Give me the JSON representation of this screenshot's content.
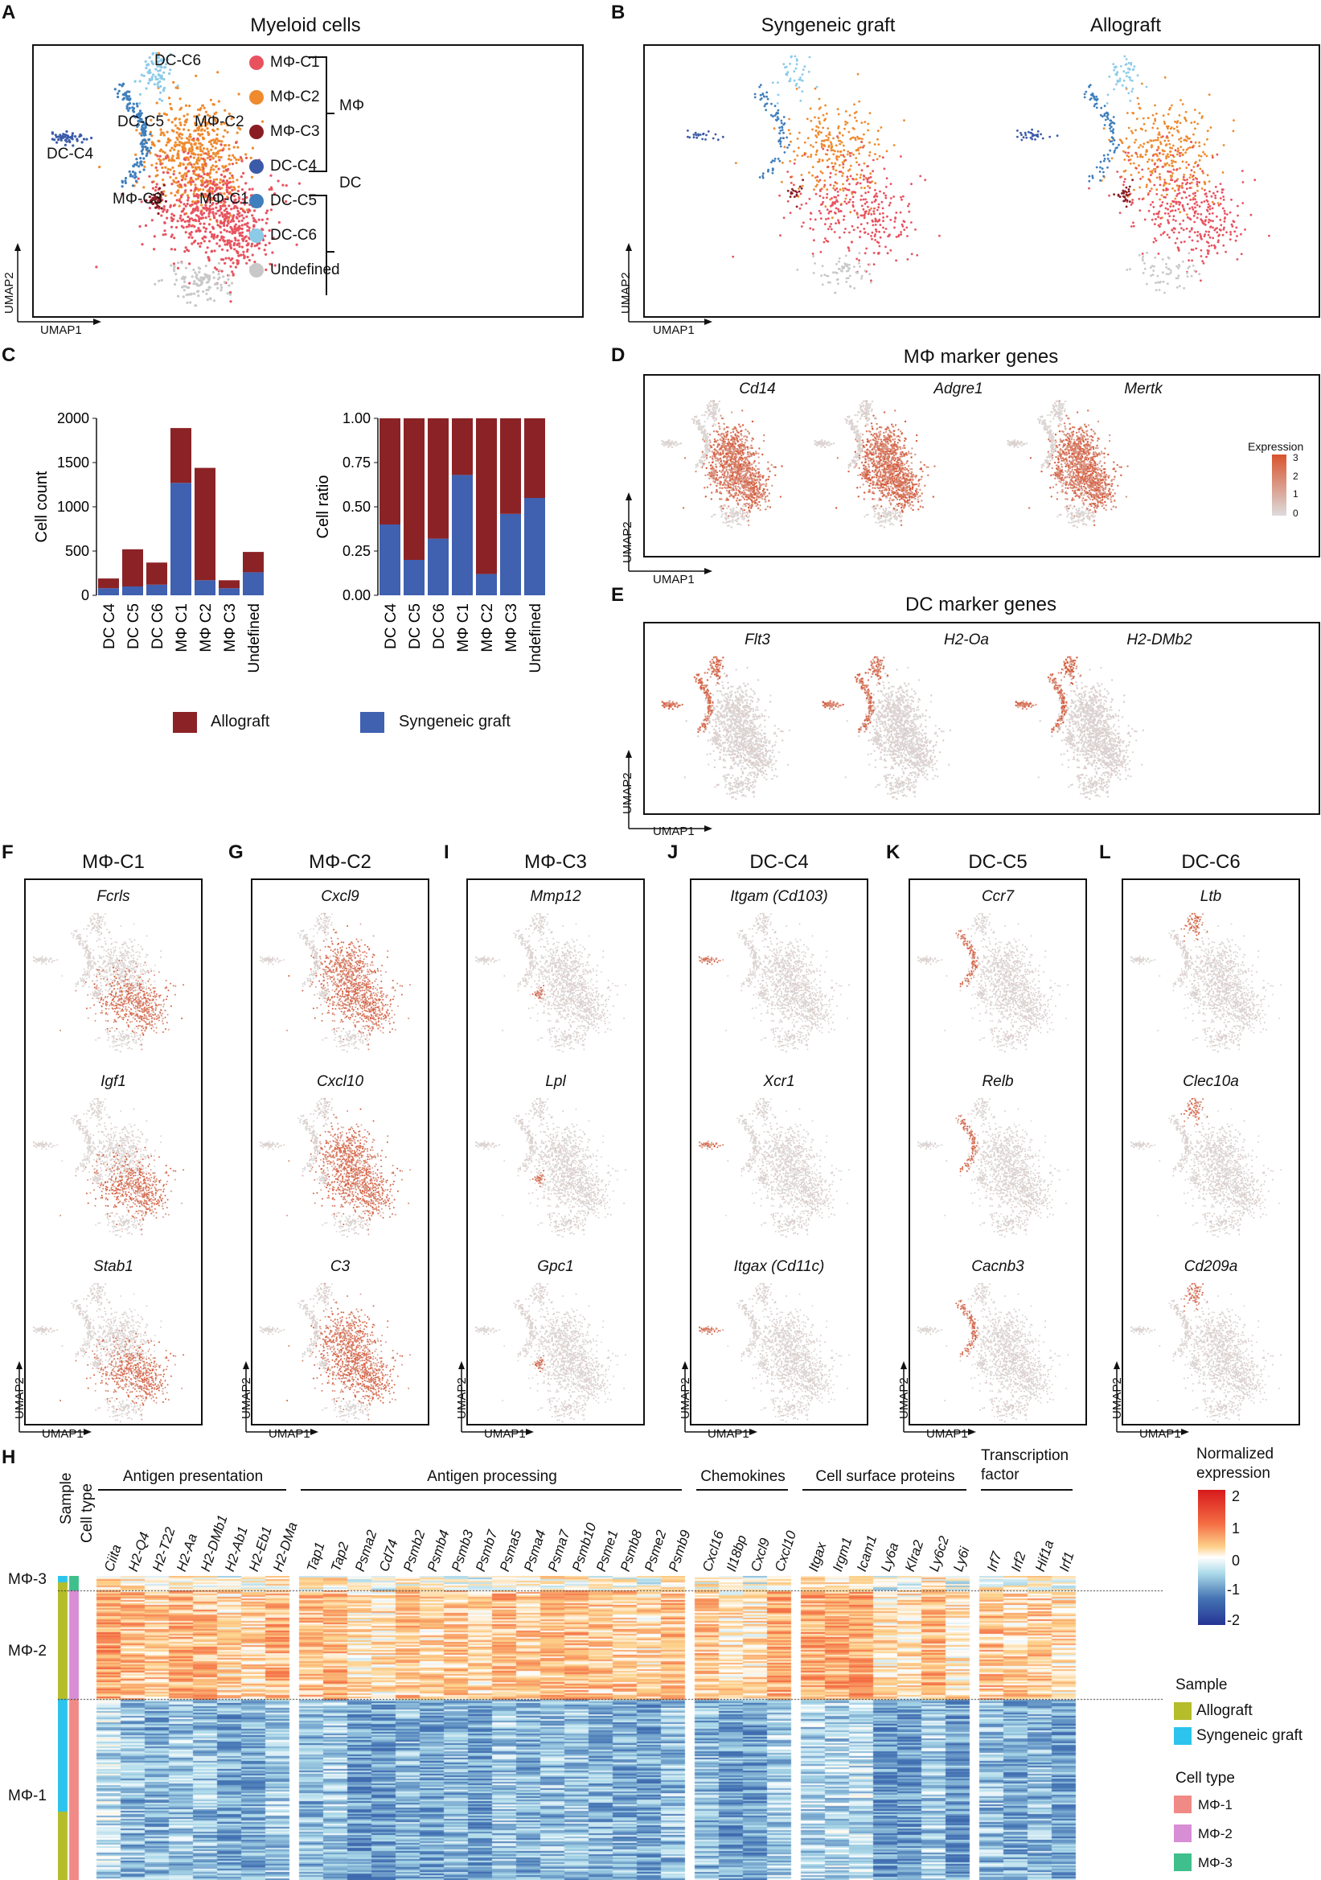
{
  "figure": {
    "panels": {
      "A": {
        "letter": "A",
        "title": "Myeloid cells",
        "x_axis": "UMAP1",
        "y_axis": "UMAP2",
        "cluster_labels": [
          "DC-C6",
          "DC-C5",
          "DC-C4",
          "MΦ-C3",
          "MΦ-C2",
          "MΦ-C1"
        ],
        "legend": [
          {
            "name": "MΦ-C1",
            "color": "#e8525f"
          },
          {
            "name": "MΦ-C2",
            "color": "#ef8a2e"
          },
          {
            "name": "MΦ-C3",
            "color": "#8a1d24"
          },
          {
            "name": "DC-C4",
            "color": "#3b5aa8"
          },
          {
            "name": "DC-C5",
            "color": "#3f7fbd"
          },
          {
            "name": "DC-C6",
            "color": "#8ccbe8"
          },
          {
            "name": "Undefined",
            "color": "#c8c8c8"
          }
        ],
        "groups": [
          {
            "name": "MΦ"
          },
          {
            "name": "DC"
          }
        ]
      },
      "B": {
        "letter": "B",
        "subtitles": [
          "Syngeneic graft",
          "Allograft"
        ],
        "x_axis": "UMAP1",
        "y_axis": "UMAP2"
      },
      "C": {
        "letter": "C",
        "legend": [
          {
            "name": "Allograft",
            "color": "#8b2326"
          },
          {
            "name": "Syngeneic graft",
            "color": "#4060b0"
          }
        ]
      },
      "D": {
        "letter": "D",
        "title": "MΦ marker genes",
        "genes": [
          "Cd14",
          "Adgre1",
          "Mertk"
        ],
        "x_axis": "UMAP1",
        "y_axis": "UMAP2",
        "colorbar": {
          "title": "Expression",
          "ticks": [
            "3",
            "2",
            "1",
            "0"
          ]
        }
      },
      "E": {
        "letter": "E",
        "title": "DC marker genes",
        "genes": [
          "Flt3",
          "H2-Oa",
          "H2-DMb2"
        ],
        "x_axis": "UMAP1",
        "y_axis": "UMAP2"
      },
      "markers": [
        {
          "letter": "F",
          "title": "MΦ-C1",
          "genes": [
            "Fcrls",
            "Igf1",
            "Stab1"
          ]
        },
        {
          "letter": "G",
          "title": "MΦ-C2",
          "genes": [
            "Cxcl9",
            "Cxcl10",
            "C3"
          ]
        },
        {
          "letter": "I",
          "title": "MΦ-C3",
          "genes": [
            "Mmp12",
            "Lpl",
            "Gpc1"
          ]
        },
        {
          "letter": "J",
          "title": "DC-C4",
          "genes": [
            "Itgam (Cd103)",
            "Xcr1",
            "Itgax (Cd11c)"
          ]
        },
        {
          "letter": "K",
          "title": "DC-C5",
          "genes": [
            "Ccr7",
            "Relb",
            "Cacnb3"
          ]
        },
        {
          "letter": "L",
          "title": "DC-C6",
          "genes": [
            "Ltb",
            "Clec10a",
            "Cd209a"
          ]
        }
      ],
      "markers_axes": {
        "x_axis": "UMAP1",
        "y_axis": "UMAP2"
      },
      "H": {
        "letter": "H",
        "annotation_headers": [
          "Sample",
          "Cell type"
        ],
        "row_groups": [
          "MΦ-3",
          "MΦ-2",
          "MΦ-1"
        ],
        "gene_groups": [
          {
            "name": "Antigen presentation",
            "genes": [
              "Ciita",
              "H2-Q4",
              "H2-T22",
              "H2-Aa",
              "H2-DMb1",
              "H2-Ab1",
              "H2-Eb1",
              "H2-DMa"
            ]
          },
          {
            "name": "Antigen processing",
            "genes": [
              "Tap1",
              "Tap2",
              "Psma2",
              "Cd74",
              "Psmb2",
              "Psmb4",
              "Psmb3",
              "Psmb7",
              "Psma5",
              "Psma4",
              "Psma7",
              "Psmb10",
              "Psme1",
              "Psmb8",
              "Psme2",
              "Psmb9"
            ]
          },
          {
            "name": "Chemokines",
            "genes": [
              "Cxcl16",
              "Il18bp",
              "Cxcl9",
              "Cxcl10"
            ]
          },
          {
            "name": "Cell surface proteins",
            "genes": [
              "Itgax",
              "Irgm1",
              "Icam1",
              "Ly6a",
              "Klra2",
              "Ly6c2",
              "Ly6i"
            ]
          },
          {
            "name": "Transcription factor",
            "genes": [
              "Irf7",
              "Irf2",
              "Hif1a",
              "Irf1"
            ]
          }
        ],
        "colorbar": {
          "title": "Normalized expression",
          "ticks": [
            "2",
            "1",
            "0",
            "-1",
            "-2"
          ]
        },
        "sample_legend": {
          "title": "Sample",
          "items": [
            {
              "name": "Allograft",
              "color": "#b5bd2b"
            },
            {
              "name": "Syngeneic graft",
              "color": "#2cc4ec"
            }
          ]
        },
        "celltype_legend": {
          "title": "Cell type",
          "items": [
            {
              "name": "MΦ-1",
              "color": "#f08a86"
            },
            {
              "name": "MΦ-2",
              "color": "#d78ed4"
            },
            {
              "name": "MΦ-3",
              "color": "#3fbf8c"
            }
          ]
        }
      }
    }
  },
  "chart_data": [
    {
      "type": "bar",
      "stacked": true,
      "categories": [
        "DC C4",
        "DC C5",
        "DC C6",
        "MΦ C1",
        "MΦ C2",
        "MΦ C3",
        "Undefined"
      ],
      "series": [
        {
          "name": "Syngeneic graft",
          "values": [
            80,
            100,
            120,
            1270,
            170,
            80,
            260
          ]
        },
        {
          "name": "Allograft",
          "values": [
            110,
            420,
            250,
            620,
            1270,
            90,
            230
          ]
        }
      ],
      "ylabel": "Cell count",
      "ylim": [
        0,
        2000
      ],
      "yticks": [
        "0",
        "500",
        "1000",
        "1500",
        "2000"
      ]
    },
    {
      "type": "bar",
      "stacked": true,
      "categories": [
        "DC C4",
        "DC C5",
        "DC C6",
        "MΦ C1",
        "MΦ C2",
        "MΦ C3",
        "Undefined"
      ],
      "series": [
        {
          "name": "Syngeneic graft",
          "values": [
            0.4,
            0.2,
            0.32,
            0.68,
            0.12,
            0.46,
            0.55
          ]
        },
        {
          "name": "Allograft",
          "values": [
            0.6,
            0.8,
            0.68,
            0.32,
            0.88,
            0.54,
            0.45
          ]
        }
      ],
      "ylabel": "Cell ratio",
      "ylim": [
        0,
        1
      ],
      "yticks": [
        "0.00",
        "0.25",
        "0.50",
        "0.75",
        "1.00"
      ]
    }
  ]
}
